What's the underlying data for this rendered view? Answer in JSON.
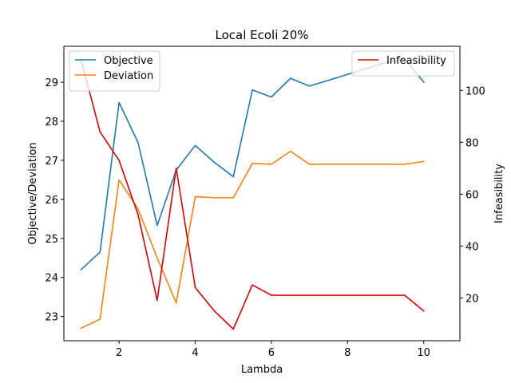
{
  "chart_data": {
    "type": "line",
    "title": "Local Ecoli 20%",
    "xlabel": "Lambda",
    "ylabel_left": "Objective/Deviation",
    "ylabel_right": "Infeasibility",
    "xlim": [
      0.55,
      10.95
    ],
    "ylim_left": [
      22.38,
      29.92
    ],
    "ylim_right": [
      3.5,
      117.0
    ],
    "x_ticks": [
      2,
      4,
      6,
      8,
      10
    ],
    "y_ticks_left": [
      23,
      24,
      25,
      26,
      27,
      28,
      29
    ],
    "y_ticks_right": [
      20,
      40,
      60,
      80,
      100
    ],
    "grid": false,
    "x": [
      1,
      1.5,
      2,
      2.5,
      3,
      3.5,
      4,
      4.5,
      5,
      5.5,
      6,
      6.5,
      7,
      7.5,
      8,
      8.5,
      9,
      9.5,
      10
    ],
    "series": [
      {
        "name": "Objective",
        "axis": "left",
        "color": "#1f77b4",
        "values": [
          24.2,
          24.65,
          28.48,
          27.45,
          25.33,
          26.75,
          27.38,
          26.95,
          26.58,
          28.8,
          28.62,
          29.1,
          28.9,
          29.05,
          29.2,
          29.35,
          29.5,
          29.6,
          29.0
        ]
      },
      {
        "name": "Deviation",
        "axis": "left",
        "color": "#ff7f0e",
        "values": [
          22.7,
          22.93,
          26.5,
          25.75,
          24.5,
          23.35,
          26.07,
          26.04,
          26.04,
          26.92,
          26.9,
          27.23,
          26.9,
          26.9,
          26.9,
          26.9,
          26.9,
          26.9,
          26.97
        ]
      },
      {
        "name": "Infeasibility",
        "axis": "right",
        "color": "#e00000",
        "values": [
          112,
          84,
          73,
          52,
          19,
          70,
          24,
          15,
          8,
          25,
          21,
          21,
          21,
          21,
          21,
          21,
          21,
          21,
          15
        ]
      }
    ],
    "legend_left": {
      "position": "upper-left",
      "entries": [
        "Objective",
        "Deviation"
      ]
    },
    "legend_right": {
      "position": "upper-right",
      "entries": [
        "Infeasibility"
      ]
    }
  }
}
